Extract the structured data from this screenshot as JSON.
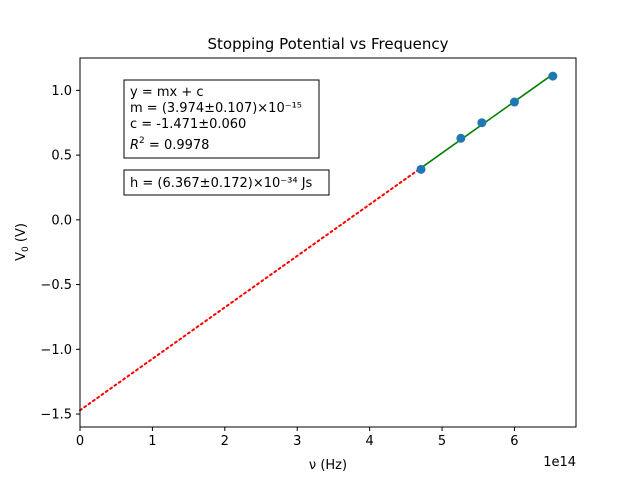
{
  "chart_data": {
    "type": "scatter",
    "title": "Stopping Potential vs Frequency",
    "xlabel": "ν (Hz)",
    "ylabel": "V",
    "ylabel_sub": "0",
    "ylabel_unit": " (V)",
    "x_offset_label": "1e14",
    "xlim": [
      0,
      6.85
    ],
    "ylim": [
      -1.6,
      1.25
    ],
    "x_ticks": [
      0,
      1,
      2,
      3,
      4,
      5,
      6
    ],
    "x_tick_labels": [
      "0",
      "1",
      "2",
      "3",
      "4",
      "5",
      "6"
    ],
    "y_ticks": [
      1.0,
      0.5,
      0.0,
      -0.5,
      -1.0,
      -1.5
    ],
    "y_tick_labels": [
      "1.0",
      "0.5",
      "0.0",
      "−0.5",
      "−1.0",
      "−1.5"
    ],
    "grid": false,
    "series": [
      {
        "kind": "points",
        "color": "#1f77b4",
        "x": [
          4.71,
          5.26,
          5.55,
          6.0,
          6.53
        ],
        "y": [
          0.39,
          0.63,
          0.75,
          0.91,
          1.11
        ]
      },
      {
        "kind": "fit-line",
        "color": "#008000",
        "x": [
          4.71,
          6.53
        ],
        "y": [
          0.401,
          1.124
        ]
      },
      {
        "kind": "extrapolation",
        "color": "#ff0000",
        "style": "dotted",
        "x": [
          0,
          4.71
        ],
        "y": [
          -1.471,
          0.401
        ]
      }
    ],
    "annotations": {
      "fit_box": {
        "line1": "y = mx + c",
        "line2": "m = (3.974±0.107)×10⁻¹⁵",
        "line3": "c = -1.471±0.060",
        "line4_r": "R",
        "line4_sup": "2",
        "line4_value": " = 0.9978"
      },
      "h_box": {
        "text": "h = (6.367±0.172)×10⁻³⁴ Js"
      }
    }
  }
}
